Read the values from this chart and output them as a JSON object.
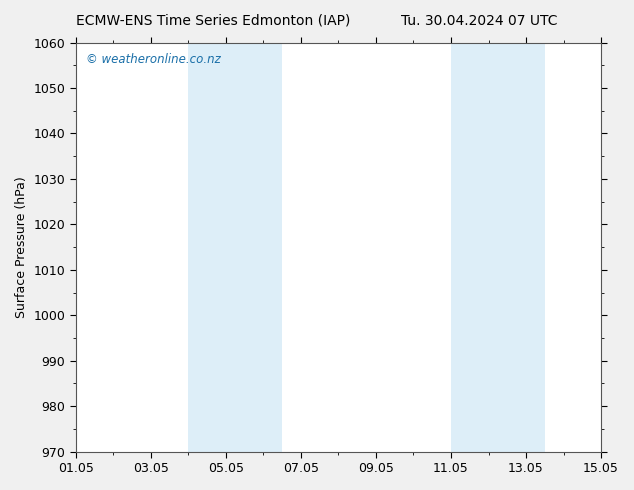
{
  "title_left": "ECMW-ENS Time Series Edmonton (IAP)",
  "title_right": "Tu. 30.04.2024 07 UTC",
  "ylabel": "Surface Pressure (hPa)",
  "ylim": [
    970,
    1060
  ],
  "yticks": [
    970,
    980,
    990,
    1000,
    1010,
    1020,
    1030,
    1040,
    1050,
    1060
  ],
  "xlim": [
    0,
    14
  ],
  "xtick_major_positions": [
    0,
    2,
    4,
    6,
    8,
    10,
    12,
    14
  ],
  "xtick_labels": [
    "01.05",
    "03.05",
    "05.05",
    "07.05",
    "09.05",
    "11.05",
    "13.05",
    "15.05"
  ],
  "shaded_bands": [
    {
      "x_start": 3,
      "x_end": 5.5
    },
    {
      "x_start": 10,
      "x_end": 12.5
    }
  ],
  "shaded_color": "#ddeef8",
  "watermark": "© weatheronline.co.nz",
  "watermark_color": "#1a6fa8",
  "bg_color": "#f0f0f0",
  "axes_bg_color": "#ffffff",
  "border_color": "#555555",
  "tick_color": "#000000",
  "title_fontsize": 10,
  "label_fontsize": 9,
  "tick_fontsize": 9,
  "watermark_fontsize": 8.5
}
